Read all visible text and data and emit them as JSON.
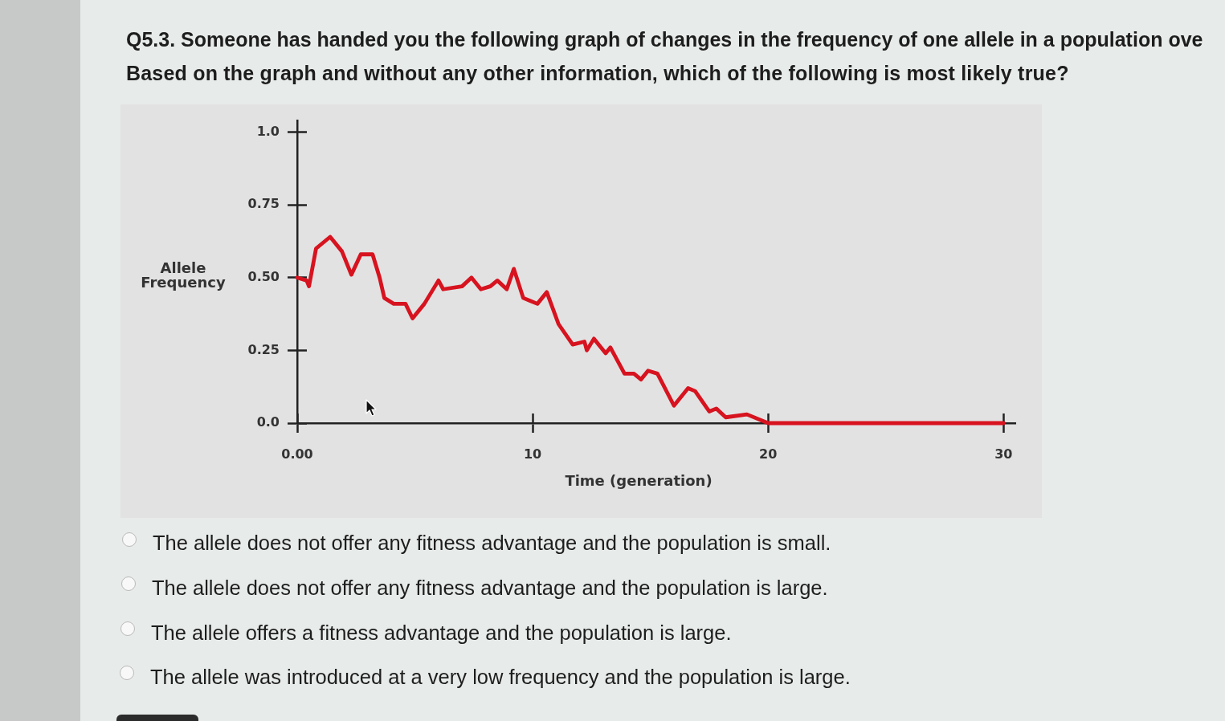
{
  "chart_data": {
    "type": "line",
    "title": "Q5.3. Someone has handed you the following graph of changes in the frequency of one allele in a population ove",
    "subtitle": "Based on the graph and without any other information, which of the following is most likely true?",
    "xlabel": "Time (generation)",
    "ylabel": "Allele Frequency",
    "annotations": [
      "The allele does not offer any fitness advantage and the population is small.",
      "The allele does not offer any fitness advantage and the population is large.",
      "The allele offers a fitness advantage and the population is large.",
      "The allele was introduced at a very low frequency and the population is large."
    ],
    "x": [
      0,
      0.4,
      0.5,
      0.8,
      1.4,
      1.9,
      2.3,
      2.7,
      3.2,
      3.5,
      3.7,
      4.1,
      4.6,
      4.9,
      5.4,
      6.0,
      6.2,
      7.0,
      7.4,
      7.8,
      8.2,
      8.5,
      8.9,
      9.2,
      9.6,
      9.9,
      10.2,
      10.6,
      11.1,
      11.7,
      12.2,
      12.3,
      12.6,
      13.1,
      13.3,
      13.9,
      14.3,
      14.6,
      14.9,
      15.3,
      16.0,
      16.6,
      16.9,
      17.5,
      17.8,
      18.2,
      19.1,
      20.0,
      30.0
    ],
    "values": [
      0.5,
      0.49,
      0.47,
      0.6,
      0.64,
      0.59,
      0.51,
      0.58,
      0.58,
      0.5,
      0.43,
      0.41,
      0.41,
      0.36,
      0.41,
      0.49,
      0.46,
      0.47,
      0.5,
      0.46,
      0.47,
      0.49,
      0.46,
      0.53,
      0.43,
      0.42,
      0.41,
      0.45,
      0.34,
      0.27,
      0.28,
      0.25,
      0.29,
      0.24,
      0.26,
      0.17,
      0.17,
      0.15,
      0.18,
      0.17,
      0.06,
      0.12,
      0.11,
      0.04,
      0.05,
      0.02,
      0.03,
      0,
      0
    ],
    "color": "#d7131f",
    "xlim": [
      0,
      30.5
    ],
    "ylim": [
      0,
      1.04
    ],
    "xticks": [
      {
        "value": 0,
        "label": "0.00"
      },
      10,
      20,
      30
    ],
    "yticks": [
      {
        "value": 0,
        "label": "0.0"
      },
      0.25,
      {
        "value": 0.5,
        "label": "0.50"
      },
      0.75,
      {
        "value": 1,
        "label": "1.0"
      }
    ]
  }
}
